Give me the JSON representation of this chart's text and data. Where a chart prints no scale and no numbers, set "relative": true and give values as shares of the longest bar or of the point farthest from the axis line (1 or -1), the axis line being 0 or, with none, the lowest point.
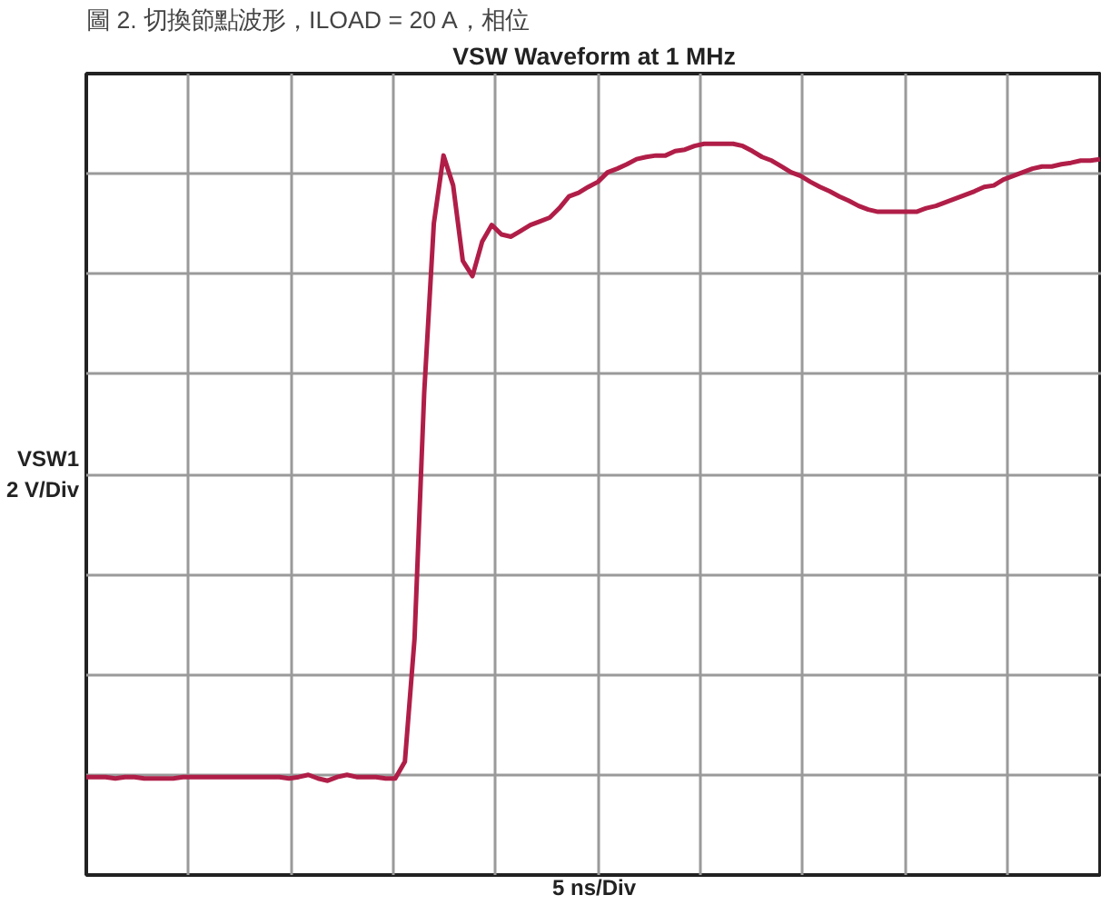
{
  "chart_data": {
    "type": "line",
    "relative": true,
    "title": "VSW Waveform at 1 MHz",
    "xlabel": "5 ns/Div",
    "ylabel": "VSW1\n2 V/Div",
    "annotations": [
      "圖 2. 切換節點波形，ILOAD = 20 A，相位"
    ],
    "grid": true,
    "tick_labels": false,
    "marker": "none",
    "line_style": "solid",
    "categories": [
      null,
      null,
      null,
      null,
      null,
      null,
      null,
      null,
      null,
      null,
      null,
      null,
      null,
      null,
      null,
      null,
      null,
      null,
      null,
      null,
      null,
      null,
      null,
      null,
      null,
      null,
      null,
      null,
      null,
      null,
      null,
      null,
      null,
      null,
      null,
      null,
      null,
      null,
      null,
      null,
      null,
      null,
      null,
      null,
      null,
      null,
      null,
      null,
      null,
      null,
      null,
      null,
      null,
      null,
      null,
      null,
      null,
      null,
      null,
      null,
      null,
      null,
      null,
      null,
      null,
      null,
      null,
      null,
      null,
      null,
      null,
      null,
      null,
      null,
      null,
      null,
      null,
      null,
      null,
      null,
      null,
      null,
      null,
      null,
      null,
      null,
      null,
      null,
      null,
      null,
      null,
      null,
      null,
      null,
      null,
      null,
      null,
      null,
      null,
      null,
      null,
      null,
      null,
      null,
      null,
      null
    ],
    "series": [
      {
        "color": "#b01e48",
        "values": [
          0.134,
          0.134,
          0.134,
          0.132,
          0.134,
          0.134,
          0.132,
          0.132,
          0.132,
          0.132,
          0.134,
          0.134,
          0.134,
          0.134,
          0.134,
          0.134,
          0.134,
          0.134,
          0.134,
          0.134,
          0.134,
          0.132,
          0.134,
          0.137,
          0.132,
          0.129,
          0.134,
          0.137,
          0.134,
          0.134,
          0.134,
          0.132,
          0.132,
          0.155,
          0.323,
          0.659,
          0.891,
          0.984,
          0.943,
          0.84,
          0.819,
          0.866,
          0.889,
          0.876,
          0.873,
          0.881,
          0.889,
          0.894,
          0.899,
          0.912,
          0.928,
          0.933,
          0.941,
          0.948,
          0.961,
          0.966,
          0.972,
          0.979,
          0.982,
          0.984,
          0.984,
          0.99,
          0.992,
          0.997,
          1.0,
          1.0,
          1.0,
          1.0,
          0.997,
          0.99,
          0.982,
          0.977,
          0.969,
          0.961,
          0.956,
          0.948,
          0.941,
          0.935,
          0.928,
          0.922,
          0.915,
          0.91,
          0.907,
          0.907,
          0.907,
          0.907,
          0.907,
          0.912,
          0.915,
          0.92,
          0.925,
          0.93,
          0.935,
          0.941,
          0.943,
          0.951,
          0.956,
          0.961,
          0.966,
          0.969,
          0.969,
          0.972,
          0.974,
          0.977,
          0.977,
          0.979
        ]
      }
    ]
  }
}
